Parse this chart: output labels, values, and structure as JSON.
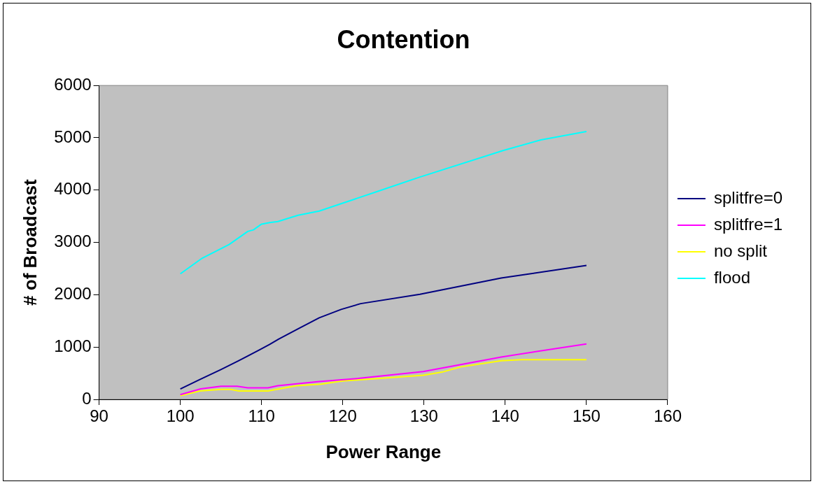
{
  "chart_data": {
    "type": "line",
    "title": "Contention",
    "xlabel": "Power Range",
    "ylabel": "# of Broadcast",
    "xlim": [
      90,
      160
    ],
    "xticks": [
      90,
      100,
      110,
      120,
      130,
      140,
      150,
      160
    ],
    "ylim": [
      0,
      6000
    ],
    "yticks": [
      0,
      1000,
      2000,
      3000,
      4000,
      5000,
      6000
    ],
    "grid": false,
    "legend": "right",
    "marker": "none",
    "line_style": "solid",
    "series": [
      {
        "name": "splitfre=0",
        "color": "#000080",
        "x": [
          100,
          102.4,
          105,
          107.2,
          109.8,
          111,
          112.1,
          114.5,
          117.1,
          119.8,
          122.2,
          129.5,
          139.5,
          150
        ],
        "values": [
          200,
          380,
          570,
          740,
          950,
          1050,
          1150,
          1350,
          1560,
          1720,
          1830,
          2010,
          2320,
          2560
        ]
      },
      {
        "name": "splitfre=1",
        "color": "#ff00ff",
        "x": [
          100,
          102.5,
          105,
          107,
          108.3,
          110.8,
          112,
          117.1,
          121.9,
          129.9,
          139.5,
          150
        ],
        "values": [
          90,
          200,
          250,
          250,
          220,
          220,
          260,
          340,
          400,
          530,
          810,
          1060
        ]
      },
      {
        "name": "no split",
        "color": "#ffff00",
        "x": [
          100,
          102.4,
          105,
          106.2,
          107.2,
          110.8,
          114.3,
          117.3,
          119.9,
          129.9,
          132.2,
          134.5,
          139.5,
          142,
          150
        ],
        "values": [
          70,
          160,
          190,
          190,
          160,
          160,
          260,
          290,
          350,
          460,
          520,
          620,
          740,
          760,
          760
        ]
      },
      {
        "name": "flood",
        "color": "#00ffff",
        "x": [
          100,
          102.7,
          106,
          108.3,
          109,
          110,
          111,
          112,
          114.5,
          117.1,
          124.2,
          129.5,
          139.8,
          144.4,
          150
        ],
        "values": [
          2400,
          2700,
          2960,
          3210,
          3240,
          3350,
          3380,
          3400,
          3520,
          3600,
          3970,
          4250,
          4760,
          4960,
          5120
        ]
      }
    ]
  }
}
